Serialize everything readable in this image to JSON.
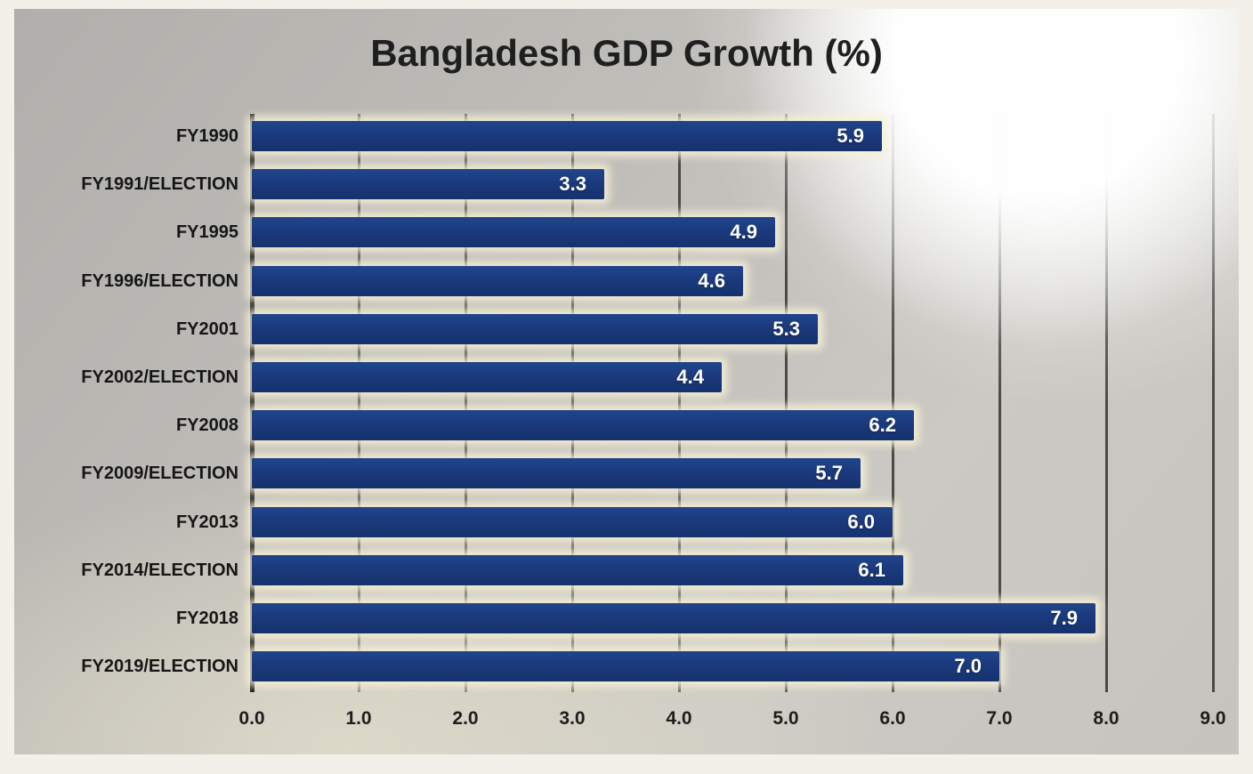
{
  "title": "Bangladesh GDP Growth (%)",
  "chart_data": {
    "type": "bar",
    "orientation": "horizontal",
    "title": "Bangladesh GDP Growth (%)",
    "categories": [
      "FY1990",
      "FY1991/ELECTION",
      "FY1995",
      "FY1996/ELECTION",
      "FY2001",
      "FY2002/ELECTION",
      "FY2008",
      "FY2009/ELECTION",
      "FY2013",
      "FY2014/ELECTION",
      "FY2018",
      "FY2019/ELECTION"
    ],
    "values": [
      5.9,
      3.3,
      4.9,
      4.6,
      5.3,
      4.4,
      6.2,
      5.7,
      6.0,
      6.1,
      7.9,
      7.0
    ],
    "value_labels": [
      "5.9",
      "3.3",
      "4.9",
      "4.6",
      "5.3",
      "4.4",
      "6.2",
      "5.7",
      "6.0",
      "6.1",
      "7.9",
      "7.0"
    ],
    "xlabel": "",
    "ylabel": "",
    "xlim": [
      0,
      9
    ],
    "xticks": [
      "0.0",
      "1.0",
      "2.0",
      "3.0",
      "4.0",
      "5.0",
      "6.0",
      "7.0",
      "8.0",
      "9.0"
    ],
    "grid": true,
    "legend": false,
    "colors": {
      "bar": "#1b3a7d",
      "bar_halo": "#f6f0d4",
      "value_label": "#ffffff",
      "axis_line": "#141414",
      "gridline": "#343432",
      "tick_label": "#1d1d1d",
      "category_label": "#161616",
      "panel_background": "#c2c0bb",
      "frame_background": "#f2f0e9",
      "title": "#1f1f1f"
    }
  }
}
